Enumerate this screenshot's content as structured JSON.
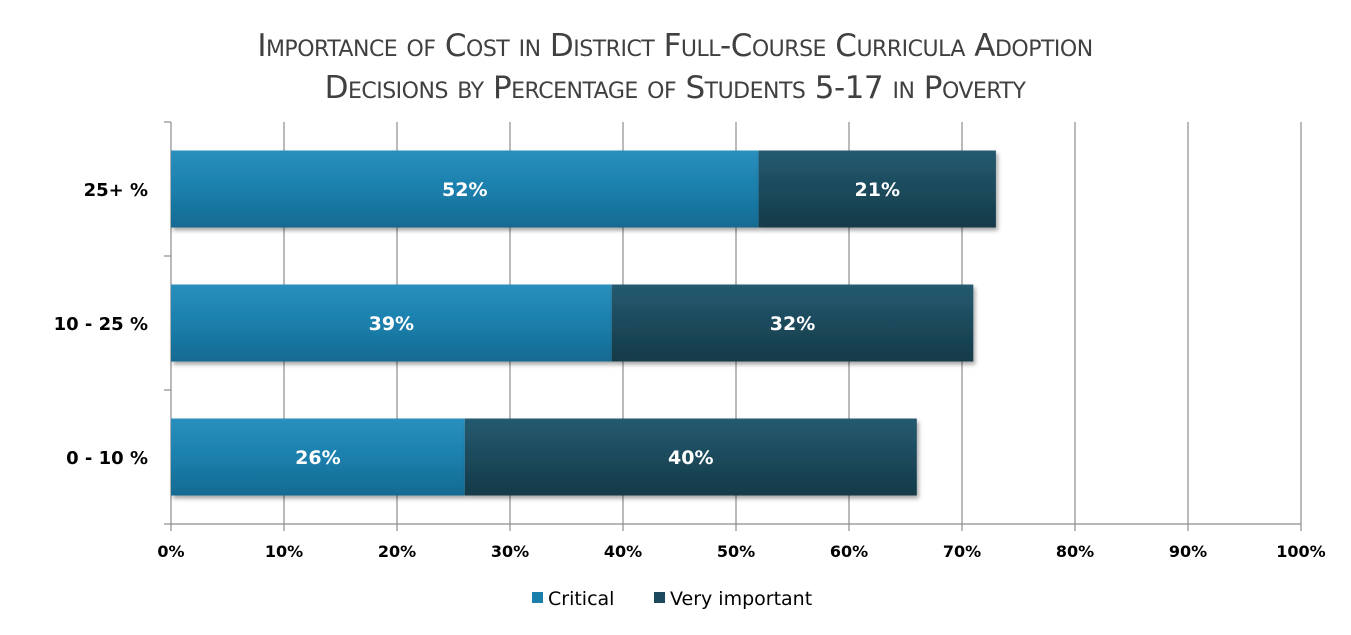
{
  "chart_data": {
    "type": "bar",
    "orientation": "horizontal",
    "stacked": true,
    "title_lines": [
      "Importance of Cost in District Full-Course Curricula Adoption",
      "Decisions by Percentage of Students 5-17 in Poverty"
    ],
    "categories": [
      "25+ %",
      "10 - 25 %",
      "0 - 10 %"
    ],
    "series": [
      {
        "name": "Critical",
        "values": [
          52,
          39,
          26
        ],
        "labels": [
          "52%",
          "39%",
          "26%"
        ],
        "color": "#1b7fac"
      },
      {
        "name": "Very important",
        "values": [
          21,
          32,
          40
        ],
        "labels": [
          "21%",
          "32%",
          "40%"
        ],
        "color": "#1c4a5c"
      }
    ],
    "xlim": [
      0,
      100
    ],
    "x_tick_labels": [
      "0%",
      "10%",
      "20%",
      "30%",
      "40%",
      "50%",
      "60%",
      "70%",
      "80%",
      "90%",
      "100%"
    ],
    "grid": true,
    "legend_position": "bottom"
  }
}
